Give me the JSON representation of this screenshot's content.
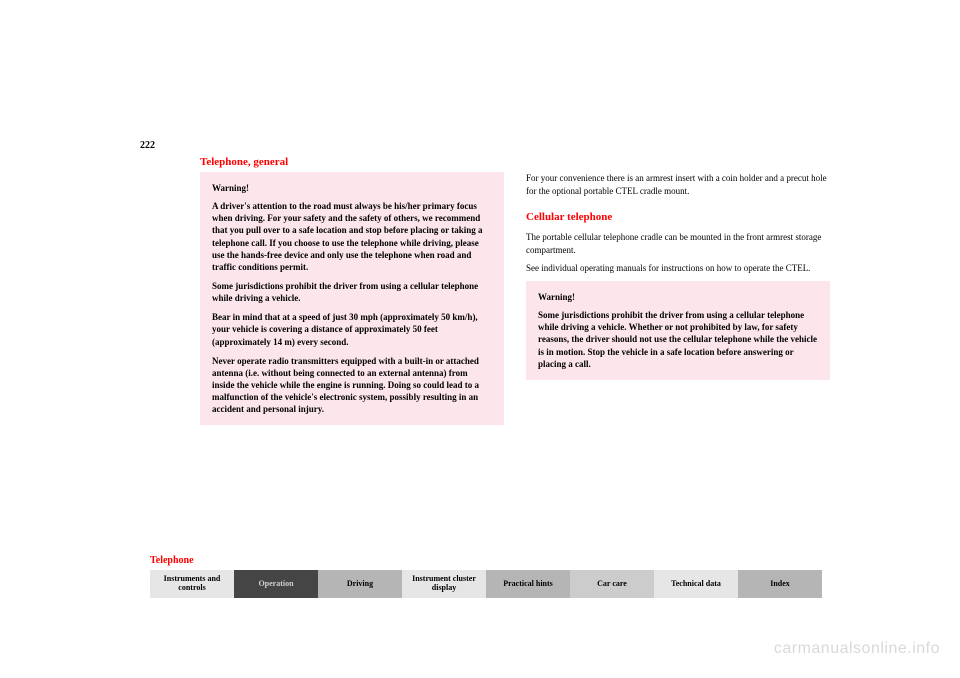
{
  "page_number": "222",
  "section_title": "Telephone, general",
  "left_warning": {
    "title": "Warning!",
    "p1": "A driver's attention to the road must always be his/her primary focus when driving. For your safety and the safety of others, we recommend that you pull over to a safe location and stop before placing or taking a telephone call. If you choose to use the telephone while driving, please use the hands-free device and only use the telephone when road and traffic conditions permit.",
    "p2": "Some jurisdictions prohibit the driver from using a cellular telephone while driving a vehicle.",
    "p3": "Bear in mind that at a speed of just 30 mph (approximately 50 km/h), your vehicle is covering a distance of approximately 50 feet (approximately 14 m) every second.",
    "p4": "Never operate radio transmitters equipped with a built-in or attached antenna (i.e. without being connected to an external antenna) from inside the vehicle while the engine is running. Doing so could lead to a malfunction of the vehicle's electronic system, possibly resulting in an accident and personal injury."
  },
  "right_col": {
    "intro": "For your convenience there is an armrest insert with a coin holder and a precut hole for the optional portable CTEL cradle mount.",
    "heading": "Cellular telephone",
    "p1": "The portable cellular telephone cradle can be mounted in the front armrest storage compartment.",
    "p2": "See individual operating manuals for instructions on how to operate the CTEL.",
    "warning_title": "Warning!",
    "warning_p": "Some jurisdictions prohibit the driver from using a cellular telephone while driving a vehicle. Whether or not prohibited by law, for safety reasons, the driver should not use the cellular telephone while the vehicle is in motion. Stop the vehicle in a safe location before answering or placing a call."
  },
  "footer_label": "Telephone",
  "tabs": {
    "instruments": "Instruments and controls",
    "operation": "Operation",
    "driving": "Driving",
    "cluster": "Instrument cluster display",
    "practical": "Practical hints",
    "carcare": "Car care",
    "technical": "Technical data",
    "index": "Index"
  },
  "watermark": "carmanualsonline.info"
}
